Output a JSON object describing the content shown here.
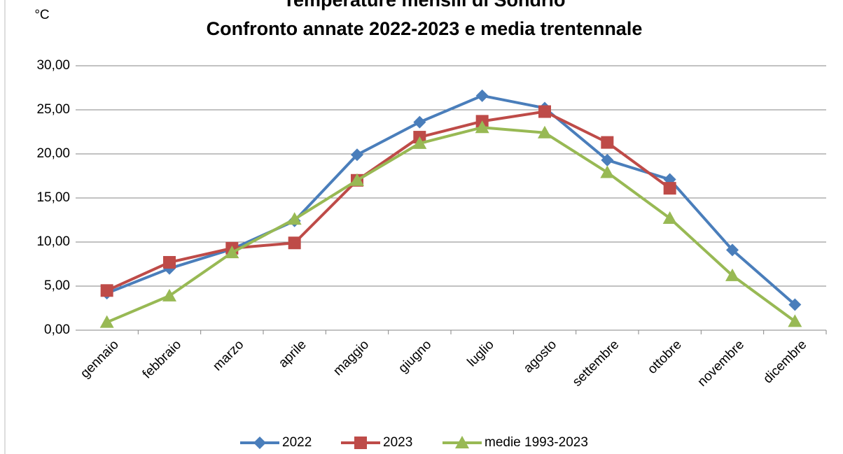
{
  "chart_data": {
    "type": "line",
    "title": "Temperature mensili di Sondrio",
    "subtitle": "Confronto annate 2022-2023 e media trentennale",
    "y_label": "°C",
    "categories": [
      "gennaio",
      "febbraio",
      "marzo",
      "aprile",
      "maggio",
      "giugno",
      "luglio",
      "agosto",
      "settembre",
      "ottobre",
      "novembre",
      "dicembre"
    ],
    "series": [
      {
        "name": "2022",
        "color": "#4a7ebb",
        "marker": "diamond",
        "values": [
          4.2,
          7.0,
          9.2,
          12.4,
          19.9,
          23.6,
          26.6,
          25.2,
          19.3,
          17.1,
          9.1,
          2.9
        ]
      },
      {
        "name": "2023",
        "color": "#be4b48",
        "marker": "square",
        "values": [
          4.5,
          7.7,
          9.3,
          9.9,
          17.0,
          21.9,
          23.7,
          24.8,
          21.3,
          16.1,
          null,
          null
        ]
      },
      {
        "name": "medie 1993-2023",
        "color": "#98b954",
        "marker": "triangle",
        "values": [
          0.9,
          3.9,
          8.8,
          12.6,
          17.0,
          21.2,
          23.0,
          22.4,
          17.9,
          12.7,
          6.2,
          1.0
        ]
      }
    ],
    "ylim": [
      0,
      30
    ],
    "yticks": [
      {
        "value": 0,
        "label": "0,00"
      },
      {
        "value": 5,
        "label": "5,00"
      },
      {
        "value": 10,
        "label": "10,00"
      },
      {
        "value": 15,
        "label": "15,00"
      },
      {
        "value": 20,
        "label": "20,00"
      },
      {
        "value": 25,
        "label": "25,00"
      },
      {
        "value": 30,
        "label": "30,00"
      }
    ],
    "grid": true,
    "legend": "bottom"
  }
}
